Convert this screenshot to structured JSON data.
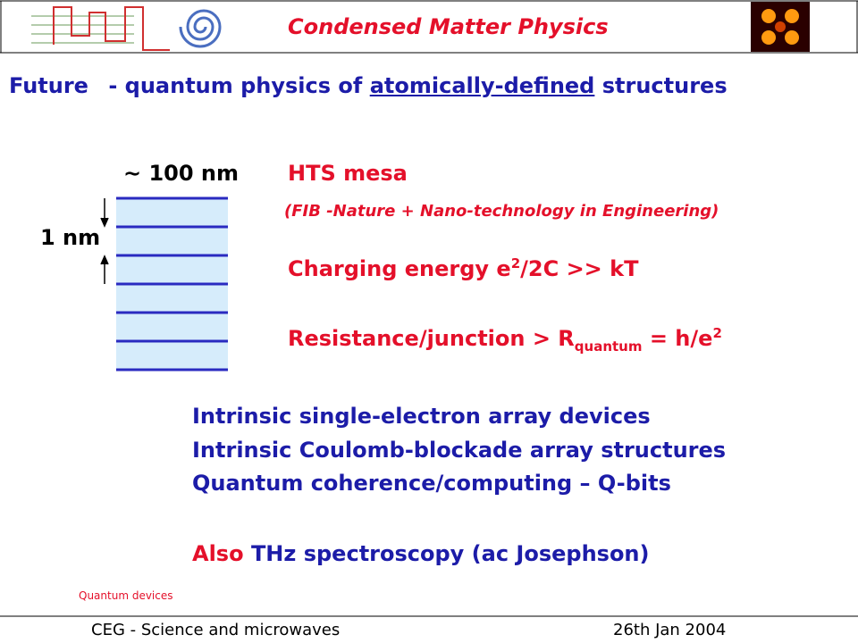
{
  "header": {
    "title": "Condensed Matter Physics"
  },
  "headline": {
    "lead": "Future",
    "middle": "- quantum physics of",
    "underlined": "atomically-defined",
    "tail": "structures"
  },
  "diagram": {
    "width_label": "∼ 100 nm",
    "layer_label": "1 nm"
  },
  "body": {
    "mesa": "HTS mesa",
    "fib_note": "(FIB -Nature + Nano-technology in Engineering)",
    "charging": {
      "text": "Charging energy e",
      "sup": "2",
      "rest": "/2C >> kT"
    },
    "resistance": {
      "text": "Resistance/junction > R",
      "sub": "quantum",
      "rest": " = h/e",
      "sup": "2"
    },
    "list": [
      "Intrinsic single-electron array devices",
      "Intrinsic Coulomb-blockade array structures",
      "Quantum coherence/computing – Q-bits"
    ],
    "also": {
      "lead": "Also",
      "rest": "THz spectroscopy (ac Josephson)"
    }
  },
  "note": "Quantum devices",
  "footer": {
    "left": "CEG - Science and microwaves",
    "right": "26th Jan 2004"
  }
}
